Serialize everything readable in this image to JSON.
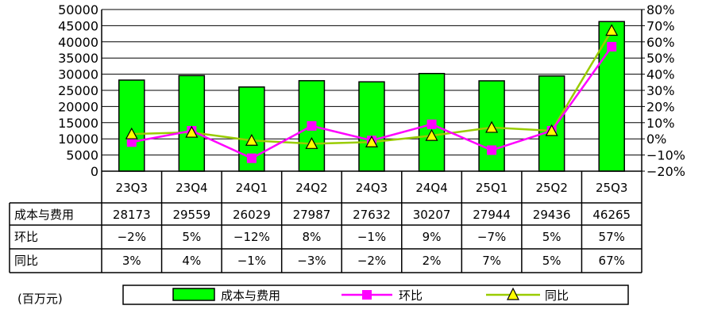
{
  "unit_label": "(百万元)",
  "colors": {
    "bar": "#00ff00",
    "bar_border": "#000000",
    "qoq": "#ff00ff",
    "yoy": "#99cc00",
    "yoy_marker": "#ffff00"
  },
  "chart_data": {
    "type": "bar",
    "categories": [
      "23Q3",
      "23Q4",
      "24Q1",
      "24Q2",
      "24Q3",
      "24Q4",
      "25Q1",
      "25Q2",
      "25Q3"
    ],
    "left_axis": {
      "min": 0,
      "max": 50000,
      "step": 5000
    },
    "right_axis": {
      "min": -20,
      "max": 80,
      "step": 10,
      "unit": "%"
    },
    "series": [
      {
        "name": "成本与费用",
        "type": "bar",
        "axis": "left",
        "values": [
          28173,
          29559,
          26029,
          27987,
          27632,
          30207,
          27944,
          29436,
          46265
        ],
        "labels": [
          "28173",
          "29559",
          "26029",
          "27987",
          "27632",
          "30207",
          "27944",
          "29436",
          "46265"
        ]
      },
      {
        "name": "环比",
        "type": "line",
        "axis": "right",
        "marker": "square",
        "values": [
          -2,
          5,
          -12,
          8,
          -1,
          9,
          -7,
          5,
          57
        ],
        "labels": [
          "−2%",
          "5%",
          "−12%",
          "8%",
          "−1%",
          "9%",
          "−7%",
          "5%",
          "57%"
        ]
      },
      {
        "name": "同比",
        "type": "line",
        "axis": "right",
        "marker": "triangle",
        "values": [
          3,
          4,
          -1,
          -3,
          -2,
          2,
          7,
          5,
          67
        ],
        "labels": [
          "3%",
          "4%",
          "−1%",
          "−3%",
          "−2%",
          "2%",
          "7%",
          "5%",
          "67%"
        ]
      }
    ],
    "grid": true,
    "legend_position": "bottom"
  }
}
